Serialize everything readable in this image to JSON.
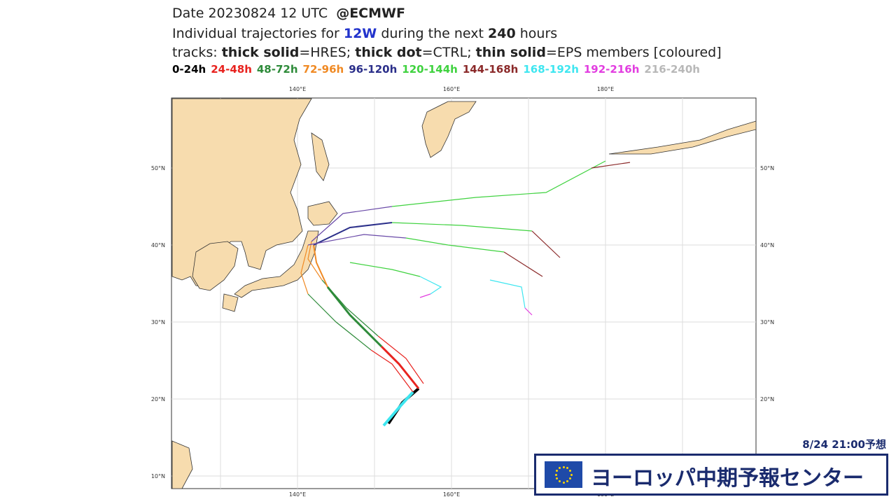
{
  "title": {
    "date": "Date 20230824 12 UTC",
    "source": "@ECMWF"
  },
  "subtitle": {
    "prefix": "Individual trajectories for",
    "storm": "12W",
    "middle": "during the next",
    "hours": "240",
    "suffix": "hours"
  },
  "tracks_legend": {
    "label": "tracks:",
    "items": [
      {
        "style": "thick solid",
        "meaning": "=HRES;"
      },
      {
        "style": "thick dot",
        "meaning": "=CTRL;"
      },
      {
        "style": "thin solid",
        "meaning": "=EPS members [coloured]"
      }
    ]
  },
  "time_legend": [
    {
      "label": "0-24h",
      "color": "#000000"
    },
    {
      "label": "24-48h",
      "color": "#e8231f"
    },
    {
      "label": "48-72h",
      "color": "#2e8b3a"
    },
    {
      "label": "72-96h",
      "color": "#f08a24"
    },
    {
      "label": "96-120h",
      "color": "#2b2f8a"
    },
    {
      "label": "120-144h",
      "color": "#3fd23f"
    },
    {
      "label": "144-168h",
      "color": "#8b2a2a"
    },
    {
      "label": "168-192h",
      "color": "#3ee6f0"
    },
    {
      "label": "192-216h",
      "color": "#e23ee0"
    },
    {
      "label": "216-240h",
      "color": "#b8b8b8"
    }
  ],
  "map": {
    "lon_labels": [
      "140°E",
      "160°E",
      "180°E"
    ],
    "lat_labels": [
      "50°N",
      "40°N",
      "30°N",
      "20°N",
      "10°N"
    ]
  },
  "overlay": {
    "forecast_time": "8/24 21:00予想",
    "banner": "ヨーロッパ中期予報センター"
  }
}
